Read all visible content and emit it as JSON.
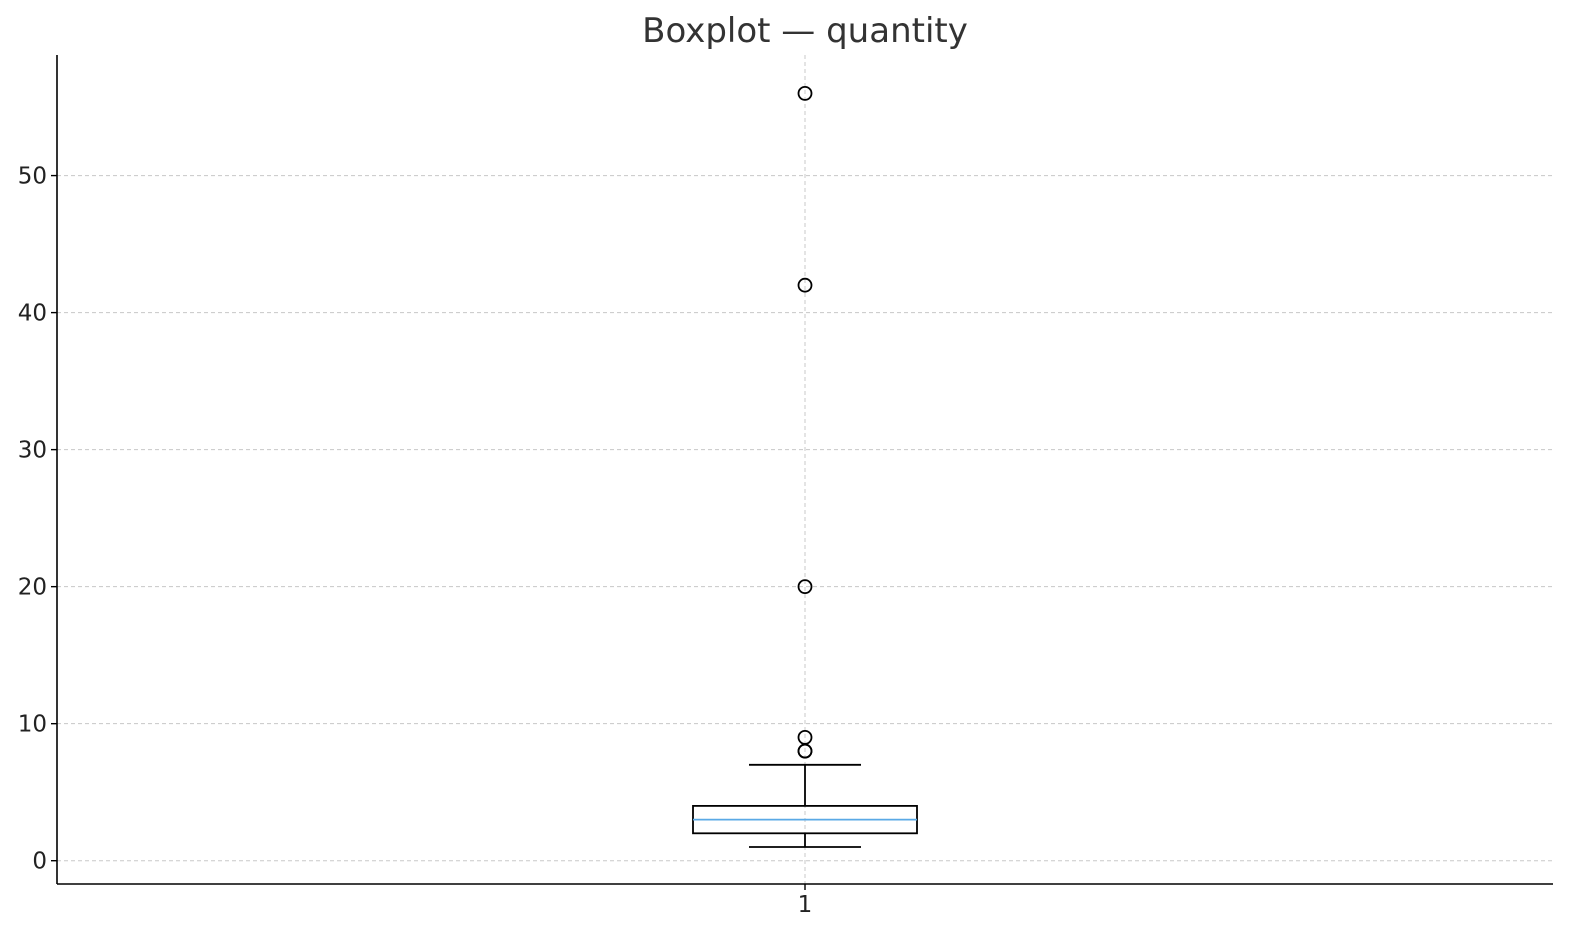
{
  "chart_data": {
    "type": "box",
    "title": "Boxplot — quantity",
    "xlabel": "",
    "ylabel": "",
    "categories": [
      "1"
    ],
    "ylim": [
      -1.7,
      58.8
    ],
    "yticks": [
      0,
      10,
      20,
      30,
      40,
      50
    ],
    "grid": true,
    "box": {
      "whisker_low": 1,
      "q1": 2,
      "median": 3,
      "q3": 4,
      "whisker_high": 7
    },
    "outliers": [
      8,
      8,
      9,
      20,
      42,
      56
    ],
    "colors": {
      "median": "#5aa9e6",
      "box": "#000000",
      "grid": "#c8c8c8"
    }
  }
}
